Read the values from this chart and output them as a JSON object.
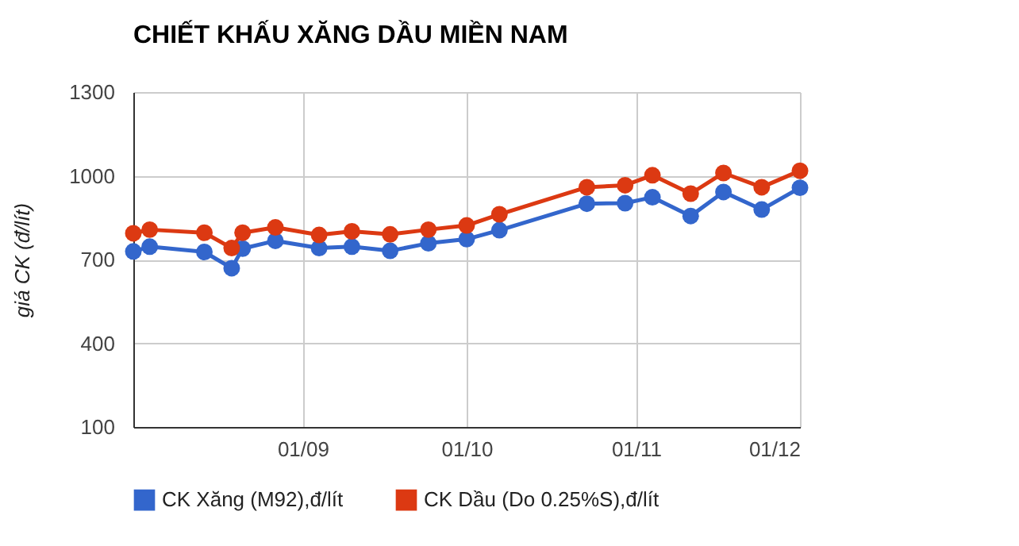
{
  "chart_data": {
    "type": "line",
    "title": "CHIẾT KHẤU XĂNG DẦU MIỀN NAM",
    "ylabel": "giá CK (đ/lít)",
    "x": [
      "--08-01",
      "--08-04",
      "--08-14",
      "--08-19",
      "--08-21",
      "--08-27",
      "--09-04",
      "--09-10",
      "--09-17",
      "--09-24",
      "--10-01",
      "--10-07",
      "--10-23",
      "--10-30",
      "--11-04",
      "--11-11",
      "--11-17",
      "--11-24",
      "--12-01"
    ],
    "series": [
      {
        "name": "CK Xăng (M92),đ/lít",
        "color": "#3366cc",
        "values": [
          729,
          746,
          727,
          669,
          739,
          767,
          741,
          746,
          731,
          758,
          773,
          805,
          900,
          902,
          923,
          856,
          942,
          879,
          957
        ]
      },
      {
        "name": "CK Dầu (Do 0.25%S),đ/lít",
        "color": "#dc3912",
        "values": [
          794,
          807,
          796,
          741,
          796,
          815,
          788,
          801,
          790,
          807,
          822,
          862,
          959,
          966,
          1002,
          936,
          1010,
          959,
          1018
        ]
      }
    ],
    "xlim": [
      "--08-01",
      "--12-01"
    ],
    "xticks": [
      {
        "value": "--09-01",
        "label": "01/09"
      },
      {
        "value": "--10-01",
        "label": "01/10"
      },
      {
        "value": "--11-01",
        "label": "01/11"
      },
      {
        "value": "--12-01",
        "label": "01/12"
      }
    ],
    "ylim": [
      100,
      1300
    ],
    "yticks": [
      100,
      400,
      700,
      1000,
      1300
    ],
    "grid": true,
    "legend": "bottom",
    "marker": "circle",
    "line_style": "solid"
  }
}
